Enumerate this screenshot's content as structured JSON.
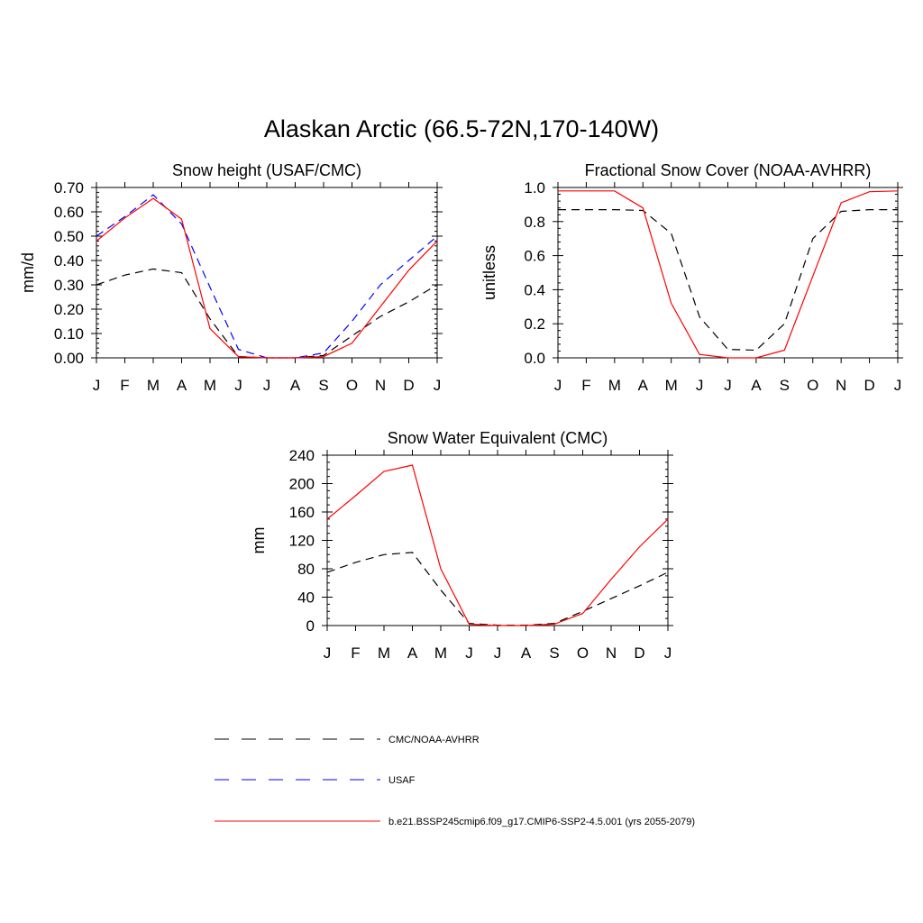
{
  "title": "Alaskan Arctic (66.5-72N,170-140W)",
  "colors": {
    "obs": "#000000",
    "usaf": "#0000ff",
    "model": "#ff0000"
  },
  "legend": [
    {
      "label": "CMC/NOAA-AVHRR",
      "color": "#000000",
      "style": "dashed"
    },
    {
      "label": "USAF",
      "color": "#0000ff",
      "style": "dashed"
    },
    {
      "label": "b.e21.BSSP245cmip6.f09_g17.CMIP6-SSP2-4.5.001 (yrs 2055-2079)",
      "color": "#ff0000",
      "style": "solid"
    }
  ],
  "chart_data": [
    {
      "type": "line",
      "title": "Snow height (USAF/CMC)",
      "ylabel": "mm/d",
      "xlabel": "",
      "categories": [
        "J",
        "F",
        "M",
        "A",
        "M",
        "J",
        "J",
        "A",
        "S",
        "O",
        "N",
        "D",
        "J"
      ],
      "ylim": [
        0,
        0.7
      ],
      "yticks": [
        "0.00",
        "0.10",
        "0.20",
        "0.30",
        "0.40",
        "0.50",
        "0.60",
        "0.70"
      ],
      "series": [
        {
          "key": "obs",
          "style": "dashed",
          "values": [
            0.3,
            0.34,
            0.365,
            0.35,
            0.16,
            0.005,
            0.0,
            0.0,
            0.01,
            0.09,
            0.17,
            0.23,
            0.3
          ]
        },
        {
          "key": "usaf",
          "style": "dashed",
          "values": [
            0.5,
            0.58,
            0.67,
            0.55,
            0.29,
            0.035,
            0.0,
            0.0,
            0.02,
            0.15,
            0.3,
            0.4,
            0.5
          ]
        },
        {
          "key": "model",
          "style": "solid",
          "values": [
            0.48,
            0.575,
            0.655,
            0.57,
            0.12,
            0.005,
            0.0,
            0.0,
            0.005,
            0.06,
            0.21,
            0.36,
            0.48
          ]
        }
      ]
    },
    {
      "type": "line",
      "title": "Fractional Snow Cover (NOAA-AVHRR)",
      "ylabel": "unitless",
      "xlabel": "",
      "categories": [
        "J",
        "F",
        "M",
        "A",
        "M",
        "J",
        "J",
        "A",
        "S",
        "O",
        "N",
        "D",
        "J"
      ],
      "ylim": [
        0,
        1.0
      ],
      "yticks": [
        "0.0",
        "0.2",
        "0.4",
        "0.6",
        "0.8",
        "1.0"
      ],
      "series": [
        {
          "key": "obs",
          "style": "dashed",
          "values": [
            0.87,
            0.87,
            0.87,
            0.865,
            0.73,
            0.24,
            0.05,
            0.045,
            0.2,
            0.7,
            0.86,
            0.87,
            0.87
          ]
        },
        {
          "key": "model",
          "style": "solid",
          "values": [
            0.98,
            0.98,
            0.98,
            0.88,
            0.32,
            0.02,
            0.0,
            0.0,
            0.045,
            0.48,
            0.91,
            0.975,
            0.98
          ]
        }
      ]
    },
    {
      "type": "line",
      "title": "Snow Water Equivalent (CMC)",
      "ylabel": "mm",
      "xlabel": "",
      "categories": [
        "J",
        "F",
        "M",
        "A",
        "M",
        "J",
        "J",
        "A",
        "S",
        "O",
        "N",
        "D",
        "J"
      ],
      "ylim": [
        0,
        240
      ],
      "yticks": [
        "0",
        "40",
        "80",
        "120",
        "160",
        "200",
        "240"
      ],
      "series": [
        {
          "key": "obs",
          "style": "dashed",
          "values": [
            75,
            89,
            100,
            103,
            50,
            3,
            0.5,
            0.5,
            3,
            20,
            38,
            56,
            75
          ]
        },
        {
          "key": "model",
          "style": "solid",
          "values": [
            150,
            183,
            217,
            226,
            80,
            2,
            0,
            0,
            2,
            17,
            65,
            111,
            150
          ]
        }
      ]
    }
  ]
}
